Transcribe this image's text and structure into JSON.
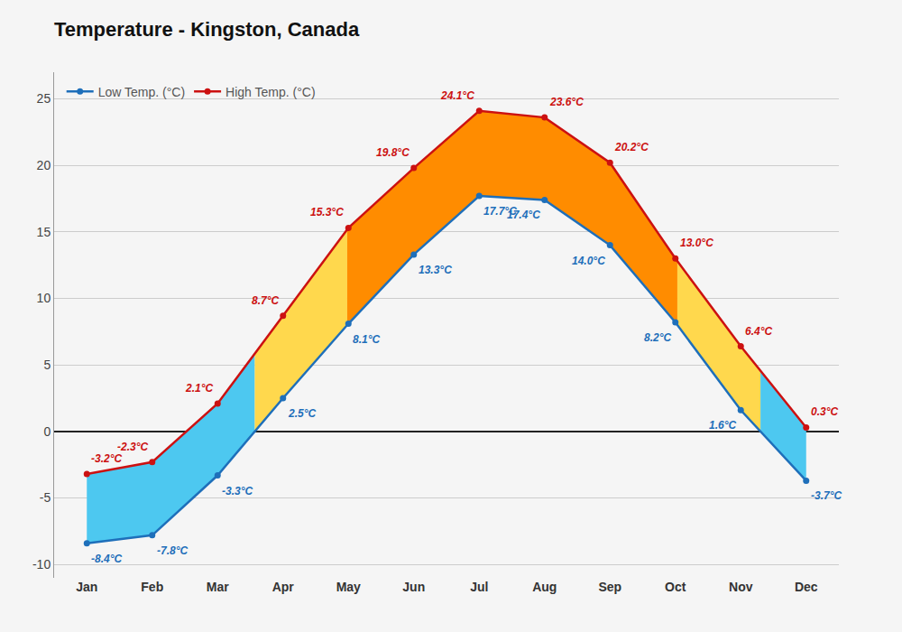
{
  "chart_data": {
    "type": "line",
    "title": "Temperature - Kingston, Canada",
    "categories": [
      "Jan",
      "Feb",
      "Mar",
      "Apr",
      "May",
      "Jun",
      "Jul",
      "Aug",
      "Sep",
      "Oct",
      "Nov",
      "Dec"
    ],
    "series": [
      {
        "name": "Low Temp. (°C)",
        "color": "#1E6FBA",
        "marker": "circle",
        "values": [
          -8.4,
          -7.8,
          -3.3,
          2.5,
          8.1,
          13.3,
          17.7,
          17.4,
          14.0,
          8.2,
          1.6,
          -3.7
        ],
        "value_labels": [
          "-8.4°C",
          "-7.8°C",
          "-3.3°C",
          "2.5°C",
          "8.1°C",
          "13.3°C",
          "17.7°C",
          "17.4°C",
          "14.0°C",
          "8.2°C",
          "1.6°C",
          "-3.7°C"
        ]
      },
      {
        "name": "High Temp. (°C)",
        "color": "#CC1111",
        "marker": "circle",
        "values": [
          -3.2,
          -2.3,
          2.1,
          8.7,
          15.3,
          19.8,
          24.1,
          23.6,
          20.2,
          13.0,
          6.4,
          0.3
        ],
        "value_labels": [
          "-3.2°C",
          "-2.3°C",
          "2.1°C",
          "8.7°C",
          "15.3°C",
          "19.8°C",
          "24.1°C",
          "23.6°C",
          "20.2°C",
          "13.0°C",
          "6.4°C",
          "0.3°C"
        ]
      }
    ],
    "ylim": [
      -11,
      27
    ],
    "yticks": [
      -10,
      -5,
      0,
      5,
      10,
      15,
      20,
      25
    ],
    "grid": true,
    "legend": "upper left",
    "data_labels": true
  }
}
